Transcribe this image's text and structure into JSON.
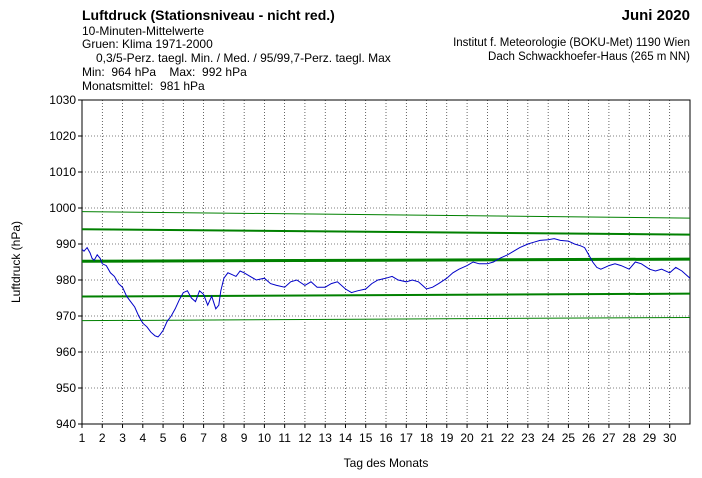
{
  "header": {
    "title": "Luftdruck (Stationsniveau - nicht red.)",
    "subtitle": "10-Minuten-Mittelwerte",
    "climate_note": "Gruen: Klima 1971-2000",
    "percentile_note": "0,3/5-Perz. taegl. Min. / Med. / 95/99,7-Perz. taegl. Max",
    "minmax": "Min:  964 hPa    Max:  992 hPa",
    "monthly_mean": "Monatsmittel:  981 hPa",
    "month": "Juni 2020",
    "institute": "Institut f. Meteorologie (BOKU-Met) 1190 Wien",
    "location": "Dach Schwackhoefer-Haus (265 m NN)"
  },
  "chart_data": {
    "type": "line",
    "xlabel": "Tag des Monats",
    "ylabel": "Luftdruck (hPa)",
    "xlim": [
      1,
      31
    ],
    "ylim": [
      940,
      1030
    ],
    "x_ticks": [
      1,
      2,
      3,
      4,
      5,
      6,
      7,
      8,
      9,
      10,
      11,
      12,
      13,
      14,
      15,
      16,
      17,
      18,
      19,
      20,
      21,
      22,
      23,
      24,
      25,
      26,
      27,
      28,
      29,
      30
    ],
    "y_ticks": [
      940,
      950,
      960,
      970,
      980,
      990,
      1000,
      1010,
      1020,
      1030
    ],
    "grid": true,
    "colors": {
      "pressure": "#0000c8",
      "climate": "#008000"
    },
    "climate_lines": [
      {
        "name": "99,7-Perz. taegl. Max",
        "x": [
          1,
          31
        ],
        "y": [
          999,
          997.2
        ],
        "width": 1
      },
      {
        "name": "95-Perz. taegl. Max",
        "x": [
          1,
          31
        ],
        "y": [
          994.1,
          992.6
        ],
        "width": 2
      },
      {
        "name": "Med.",
        "x": [
          1,
          31
        ],
        "y": [
          985.2,
          985.8
        ],
        "width": 3
      },
      {
        "name": "5-Perz. taegl. Min.",
        "x": [
          1,
          31
        ],
        "y": [
          975.4,
          976.2
        ],
        "width": 2
      },
      {
        "name": "0,3-Perz. taegl. Min.",
        "x": [
          1,
          31
        ],
        "y": [
          968.7,
          969.6
        ],
        "width": 1
      }
    ],
    "series": [
      {
        "x": [
          1.0,
          1.1,
          1.25,
          1.4,
          1.5,
          1.6,
          1.75,
          1.9,
          2.0,
          2.2,
          2.4,
          2.6,
          2.8,
          3.0,
          3.2,
          3.4,
          3.6,
          3.8,
          4.0,
          4.2,
          4.4,
          4.6,
          4.75,
          4.85,
          5.0,
          5.2,
          5.4,
          5.6,
          5.8,
          6.0,
          6.2,
          6.4,
          6.6,
          6.8,
          7.0,
          7.2,
          7.4,
          7.6,
          7.75,
          7.85,
          8.0,
          8.2,
          8.4,
          8.6,
          8.8,
          9.0,
          9.3,
          9.6,
          10.0,
          10.3,
          10.6,
          11.0,
          11.3,
          11.6,
          12.0,
          12.3,
          12.6,
          13.0,
          13.3,
          13.6,
          14.0,
          14.3,
          14.6,
          15.0,
          15.3,
          15.6,
          16.0,
          16.3,
          16.6,
          17.0,
          17.3,
          17.6,
          17.8,
          18.0,
          18.3,
          18.6,
          19.0,
          19.3,
          19.6,
          20.0,
          20.3,
          20.6,
          21.0,
          21.3,
          21.6,
          22.0,
          22.3,
          22.6,
          23.0,
          23.3,
          23.6,
          24.0,
          24.3,
          24.6,
          25.0,
          25.3,
          25.6,
          25.8,
          26.0,
          26.2,
          26.4,
          26.6,
          26.8,
          27.0,
          27.3,
          27.6,
          28.0,
          28.3,
          28.6,
          29.0,
          29.3,
          29.6,
          30.0,
          30.3,
          30.6,
          31.0
        ],
        "y": [
          988.5,
          988.0,
          989.0,
          987.5,
          986.0,
          985.5,
          987.0,
          986.0,
          984.5,
          984.0,
          982.0,
          981.0,
          979.0,
          978.0,
          975.5,
          974.0,
          972.5,
          970.0,
          968.0,
          967.0,
          965.5,
          964.5,
          964.2,
          964.8,
          966.0,
          968.5,
          970.0,
          972.0,
          974.5,
          976.5,
          977.0,
          975.0,
          974.0,
          977.0,
          976.0,
          973.0,
          975.5,
          972.0,
          973.0,
          977.0,
          980.5,
          982.0,
          981.5,
          981.0,
          982.5,
          982.0,
          981.0,
          980.0,
          980.5,
          979.0,
          978.5,
          978.0,
          979.5,
          980.0,
          978.5,
          979.5,
          978.0,
          978.0,
          979.0,
          979.5,
          977.5,
          976.5,
          977.0,
          977.5,
          979.0,
          980.0,
          980.5,
          981.0,
          980.0,
          979.5,
          980.0,
          979.5,
          978.5,
          977.5,
          978.0,
          979.0,
          980.5,
          982.0,
          983.0,
          984.0,
          985.0,
          984.5,
          984.5,
          985.0,
          986.0,
          987.0,
          988.0,
          989.0,
          990.0,
          990.5,
          991.0,
          991.2,
          991.5,
          991.0,
          990.8,
          990.0,
          989.5,
          989.0,
          987.0,
          985.0,
          983.5,
          983.0,
          983.5,
          984.0,
          984.5,
          984.0,
          983.0,
          985.0,
          984.5,
          983.0,
          982.5,
          983.0,
          982.0,
          983.5,
          982.5,
          980.5
        ]
      }
    ]
  }
}
